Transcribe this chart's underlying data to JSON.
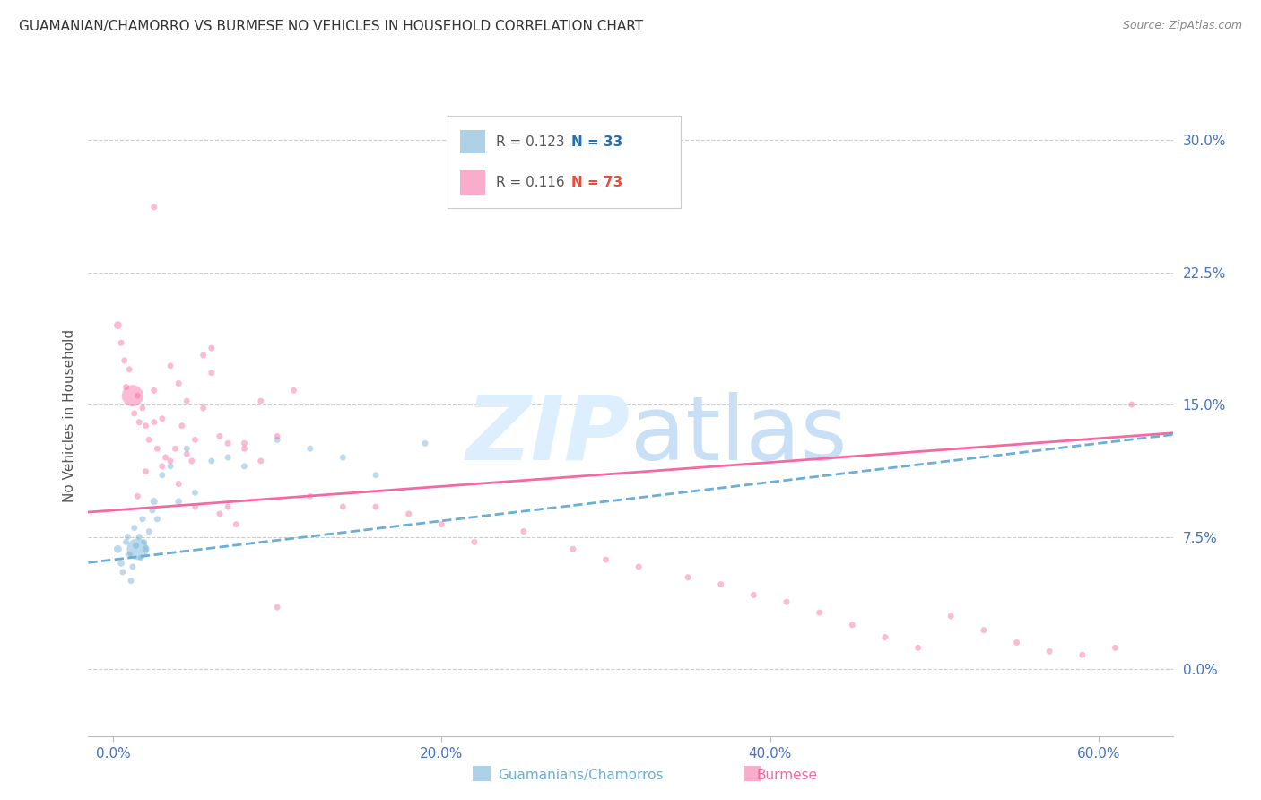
{
  "title": "GUAMANIAN/CHAMORRO VS BURMESE NO VEHICLES IN HOUSEHOLD CORRELATION CHART",
  "source": "Source: ZipAtlas.com",
  "ylabel": "No Vehicles in Household",
  "xlabel_tick_vals": [
    0.0,
    0.2,
    0.4,
    0.6
  ],
  "ylabel_tick_vals": [
    0.0,
    0.075,
    0.15,
    0.225,
    0.3
  ],
  "xlim": [
    -0.015,
    0.645
  ],
  "ylim": [
    -0.038,
    0.325
  ],
  "title_color": "#333333",
  "source_color": "#888888",
  "axis_label_color": "#555555",
  "tick_color": "#4472c4",
  "grid_color": "#cccccc",
  "background_color": "#ffffff",
  "watermark_color": "#ddeeff",
  "guamanian_x": [
    0.003,
    0.005,
    0.006,
    0.008,
    0.009,
    0.01,
    0.011,
    0.012,
    0.013,
    0.014,
    0.015,
    0.016,
    0.017,
    0.018,
    0.019,
    0.02,
    0.022,
    0.024,
    0.025,
    0.027,
    0.03,
    0.035,
    0.04,
    0.045,
    0.05,
    0.06,
    0.07,
    0.08,
    0.1,
    0.12,
    0.14,
    0.16,
    0.19
  ],
  "guamanian_y": [
    0.068,
    0.06,
    0.055,
    0.072,
    0.075,
    0.065,
    0.05,
    0.058,
    0.08,
    0.07,
    0.068,
    0.075,
    0.063,
    0.085,
    0.072,
    0.068,
    0.078,
    0.09,
    0.095,
    0.085,
    0.11,
    0.115,
    0.095,
    0.125,
    0.1,
    0.118,
    0.12,
    0.115,
    0.13,
    0.125,
    0.12,
    0.11,
    0.128
  ],
  "guamanian_size": [
    40,
    30,
    25,
    25,
    25,
    25,
    25,
    25,
    25,
    25,
    300,
    25,
    25,
    25,
    25,
    35,
    25,
    25,
    35,
    25,
    25,
    25,
    30,
    25,
    25,
    25,
    25,
    25,
    25,
    25,
    25,
    25,
    25
  ],
  "burmese_x": [
    0.003,
    0.005,
    0.007,
    0.008,
    0.01,
    0.012,
    0.013,
    0.015,
    0.016,
    0.018,
    0.02,
    0.022,
    0.025,
    0.027,
    0.03,
    0.032,
    0.035,
    0.038,
    0.04,
    0.042,
    0.045,
    0.048,
    0.05,
    0.055,
    0.06,
    0.065,
    0.07,
    0.08,
    0.09,
    0.1,
    0.11,
    0.12,
    0.14,
    0.16,
    0.18,
    0.2,
    0.22,
    0.25,
    0.28,
    0.3,
    0.32,
    0.35,
    0.37,
    0.39,
    0.41,
    0.43,
    0.45,
    0.47,
    0.49,
    0.51,
    0.53,
    0.55,
    0.57,
    0.59,
    0.61,
    0.62,
    0.025,
    0.03,
    0.04,
    0.05,
    0.06,
    0.07,
    0.08,
    0.09,
    0.1,
    0.015,
    0.02,
    0.025,
    0.035,
    0.045,
    0.055,
    0.065,
    0.075
  ],
  "burmese_y": [
    0.195,
    0.185,
    0.175,
    0.16,
    0.17,
    0.155,
    0.145,
    0.155,
    0.14,
    0.148,
    0.138,
    0.13,
    0.14,
    0.125,
    0.115,
    0.12,
    0.118,
    0.125,
    0.105,
    0.138,
    0.122,
    0.118,
    0.13,
    0.178,
    0.168,
    0.132,
    0.128,
    0.125,
    0.118,
    0.132,
    0.158,
    0.098,
    0.092,
    0.092,
    0.088,
    0.082,
    0.072,
    0.078,
    0.068,
    0.062,
    0.058,
    0.052,
    0.048,
    0.042,
    0.038,
    0.032,
    0.025,
    0.018,
    0.012,
    0.03,
    0.022,
    0.015,
    0.01,
    0.008,
    0.012,
    0.15,
    0.158,
    0.142,
    0.162,
    0.092,
    0.182,
    0.092,
    0.128,
    0.152,
    0.035,
    0.098,
    0.112,
    0.262,
    0.172,
    0.152,
    0.148,
    0.088,
    0.082
  ],
  "burmese_size": [
    40,
    25,
    25,
    25,
    25,
    300,
    25,
    25,
    25,
    25,
    25,
    25,
    25,
    25,
    25,
    25,
    25,
    25,
    25,
    25,
    25,
    25,
    25,
    25,
    25,
    25,
    25,
    25,
    25,
    25,
    25,
    25,
    25,
    25,
    25,
    25,
    25,
    25,
    25,
    25,
    25,
    25,
    25,
    25,
    25,
    25,
    25,
    25,
    25,
    25,
    25,
    25,
    25,
    25,
    25,
    25,
    25,
    25,
    25,
    25,
    25,
    25,
    25,
    25,
    25,
    25,
    25,
    25,
    25,
    25,
    25,
    25,
    25
  ],
  "guamanian_color": "#6baed6",
  "burmese_color": "#f768a1",
  "scatter_alpha": 0.45,
  "burmese_trend_y0": 0.09,
  "burmese_trend_slope": 0.068,
  "guam_trend_y0": 0.062,
  "guam_trend_slope": 0.11,
  "legend_r1_color": "#555555",
  "legend_n1_color": "#2171b5",
  "legend_r2_color": "#555555",
  "legend_n2_color": "#e74c3c",
  "bottom_label_guamanian": "Guamanians/Chamorros",
  "bottom_label_burmese": "Burmese"
}
